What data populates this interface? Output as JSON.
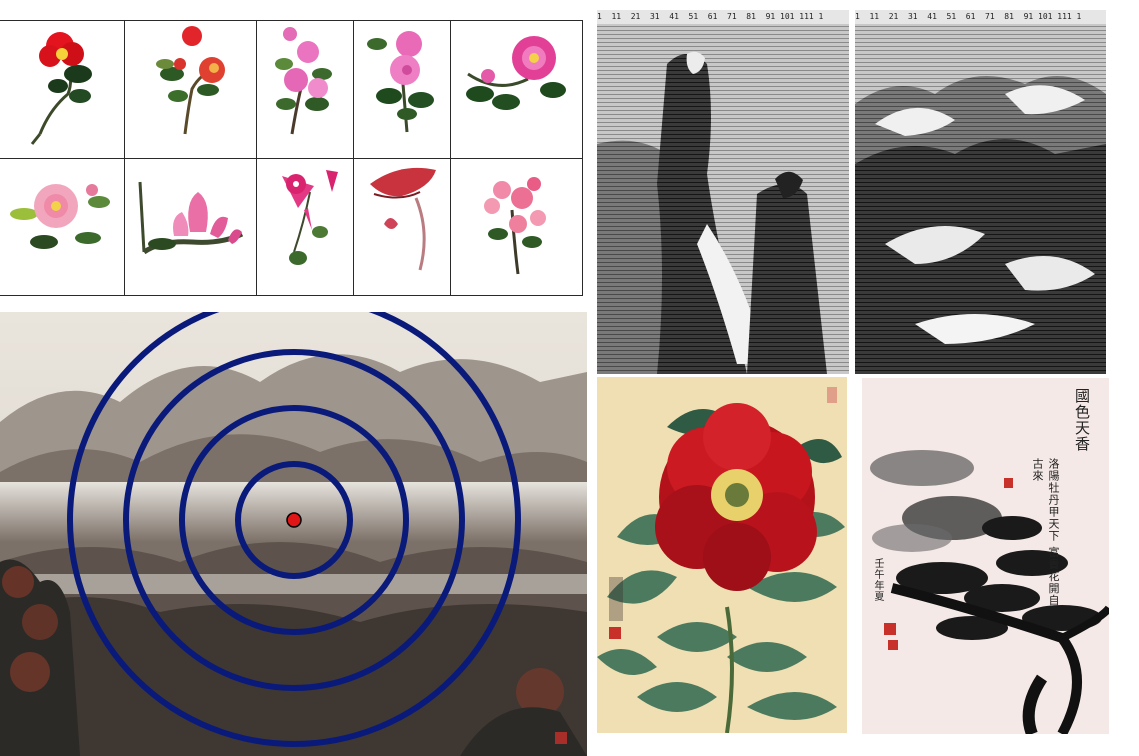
{
  "flower_grid": {
    "rows": 2,
    "columns": 5,
    "cells": [
      {
        "name": "red-camellia"
      },
      {
        "name": "red-rose-branch"
      },
      {
        "name": "pink-azalea"
      },
      {
        "name": "pink-peony-sprig"
      },
      {
        "name": "magenta-peony"
      },
      {
        "name": "pink-peony-leaves"
      },
      {
        "name": "pink-lotus-branch"
      },
      {
        "name": "morning-glory"
      },
      {
        "name": "red-lotus-bud"
      },
      {
        "name": "pink-blossom-cluster"
      }
    ]
  },
  "ascii_art": {
    "ruler_text": "1  11  21  31  41  51  61  71  81  91 101 111 1",
    "left_subject": "figures-in-landscape",
    "right_subject": "mountain-landscape"
  },
  "landscape": {
    "subject": "ink mountain landscape",
    "ring_color": "#0a1a7a",
    "center_marker_color": "#e01515",
    "ring_count": 4
  },
  "peony_painting": {
    "subject": "red peony",
    "accent": "#c2141c",
    "background": "#f2e2b8"
  },
  "ink_painting": {
    "subject": "ink peony branch",
    "title_text": "國色天香",
    "poem_text": "洛陽牡丹甲天下 富貴花開自古來",
    "signature_text": "壬午年夏",
    "seal_color": "#c8302a"
  }
}
